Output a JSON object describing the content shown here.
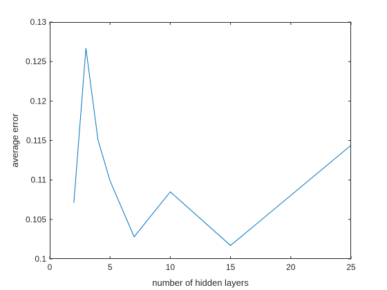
{
  "chart_data": {
    "type": "line",
    "title": "",
    "xlabel": "number of hidden layers",
    "ylabel": "average error",
    "xlim": [
      0,
      25
    ],
    "ylim": [
      0.1,
      0.13
    ],
    "xticks": [
      0,
      5,
      10,
      15,
      20,
      25
    ],
    "xtick_labels": [
      "0",
      "5",
      "10",
      "15",
      "20",
      "25"
    ],
    "yticks": [
      0.1,
      0.105,
      0.11,
      0.115,
      0.12,
      0.125,
      0.13
    ],
    "ytick_labels": [
      "0.1",
      "0.105",
      "0.11",
      "0.115",
      "0.12",
      "0.125",
      "0.13"
    ],
    "grid": false,
    "series": [
      {
        "x": [
          2,
          3,
          4,
          5,
          7,
          10,
          15,
          25
        ],
        "y": [
          0.1071,
          0.1267,
          0.1151,
          0.1099,
          0.1028,
          0.1085,
          0.1017,
          0.1144
        ],
        "color": "#0072bd"
      }
    ]
  }
}
